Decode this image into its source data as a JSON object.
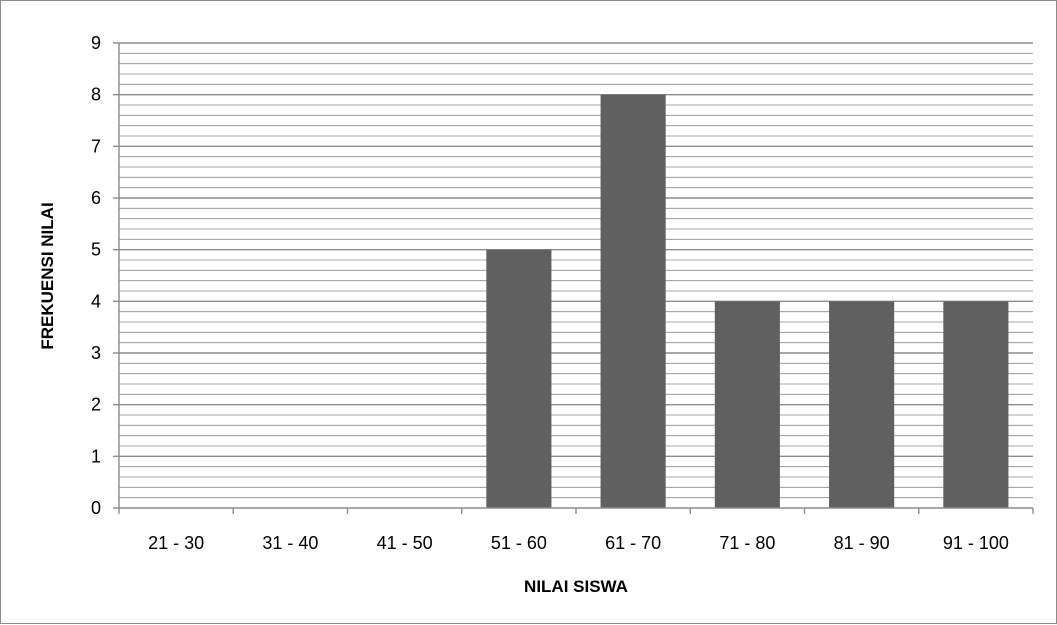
{
  "chart_data": {
    "type": "bar",
    "categories": [
      "21 - 30",
      "31 - 40",
      "41 - 50",
      "51 - 60",
      "61 - 70",
      "71 - 80",
      "81 - 90",
      "91 - 100"
    ],
    "values": [
      0,
      0,
      0,
      5,
      8,
      4,
      4,
      4
    ],
    "xlabel": "NILAI SISWA",
    "ylabel": "FREKUENSI NILAI",
    "ylim": [
      0,
      9
    ],
    "y_ticks": [
      0,
      1,
      2,
      3,
      4,
      5,
      6,
      7,
      8,
      9
    ],
    "major_grid": true,
    "minor_grid": true,
    "legend": "none",
    "bar_color": "#606060",
    "grid_color": "#8c8c8c"
  }
}
